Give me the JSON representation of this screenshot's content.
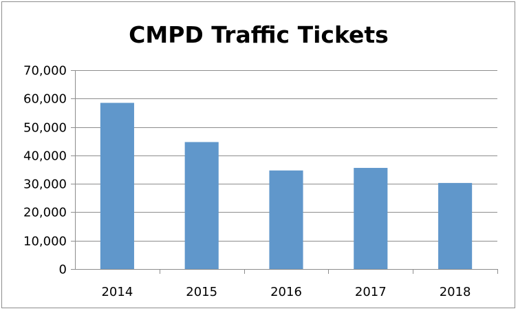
{
  "chart_data": {
    "type": "bar",
    "title": "CMPD Traffic Tickets",
    "xlabel": "",
    "ylabel": "",
    "categories": [
      "2014",
      "2015",
      "2016",
      "2017",
      "2018"
    ],
    "values": [
      58500,
      44700,
      34700,
      35600,
      30300
    ],
    "ylim": [
      0,
      70000
    ],
    "yticks": [
      0,
      10000,
      20000,
      30000,
      40000,
      50000,
      60000,
      70000
    ],
    "ytick_labels": [
      "0",
      "10,000",
      "20,000",
      "30,000",
      "40,000",
      "50,000",
      "60,000",
      "70,000"
    ],
    "grid": true,
    "legend": "none",
    "bar_color": "#6097cb"
  }
}
